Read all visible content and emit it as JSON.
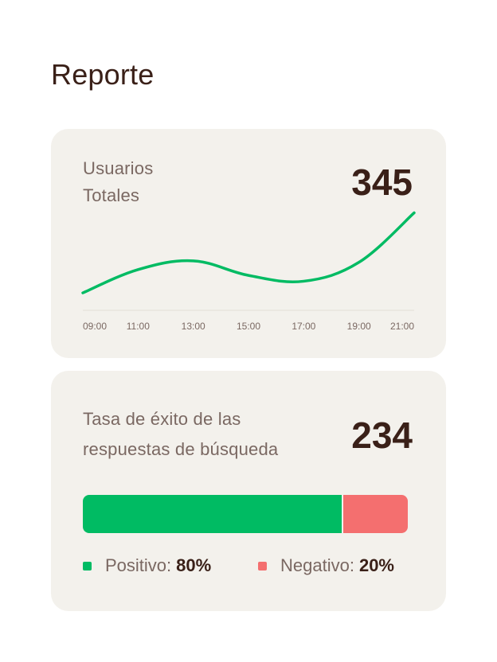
{
  "page": {
    "title": "Reporte"
  },
  "users_card": {
    "label_line1": "Usuarios",
    "label_line2": "Totales",
    "total": "345",
    "line_color": "#00bb63"
  },
  "success_card": {
    "label_line1": "Tasa de éxito de las",
    "label_line2": "respuestas de búsqueda",
    "total": "234",
    "positive": {
      "label": "Positivo:",
      "value": "80%",
      "fraction": 0.8,
      "color": "#00bb63"
    },
    "negative": {
      "label": "Negativo:",
      "value": "20%",
      "fraction": 0.2,
      "color": "#f46f6f"
    }
  },
  "chart_data": {
    "type": "line",
    "categories": [
      "09:00",
      "11:00",
      "13:00",
      "15:00",
      "17:00",
      "19:00",
      "21:00"
    ],
    "series": [
      {
        "values": [
          12,
          28,
          34,
          24,
          20,
          33,
          67
        ]
      }
    ],
    "ylim": [
      0,
      70
    ],
    "grid": false,
    "title": "",
    "xlabel": "",
    "ylabel": ""
  }
}
